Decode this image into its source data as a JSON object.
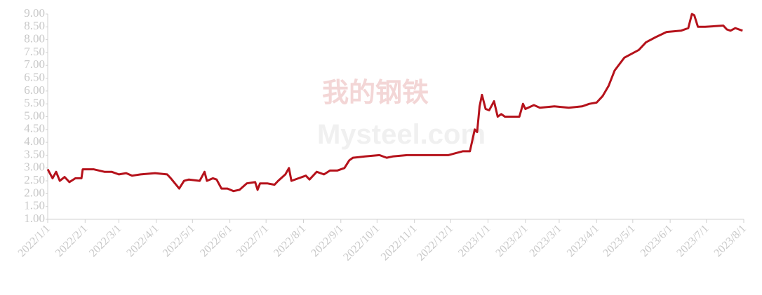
{
  "watermark": {
    "brand": "我的钢铁",
    "site": "Mysteel.com"
  },
  "chart_data": {
    "type": "line",
    "x": [
      "2022/1/1",
      "2022/1/5",
      "2022/1/8",
      "2022/1/11",
      "2022/1/15",
      "2022/1/19",
      "2022/1/24",
      "2022/1/29",
      "2022/1/30",
      "2022/2/8",
      "2022/2/17",
      "2022/2/23",
      "2022/3/1",
      "2022/3/7",
      "2022/3/12",
      "2022/3/19",
      "2022/3/31",
      "2022/4/10",
      "2022/4/13",
      "2022/4/20",
      "2022/4/24",
      "2022/4/28",
      "2022/5/7",
      "2022/5/11",
      "2022/5/13",
      "2022/5/18",
      "2022/5/21",
      "2022/5/25",
      "2022/5/30",
      "2022/6/4",
      "2022/6/9",
      "2022/6/15",
      "2022/6/22",
      "2022/6/24",
      "2022/6/26",
      "2022/7/2",
      "2022/7/8",
      "2022/7/11",
      "2022/7/17",
      "2022/7/20",
      "2022/7/22",
      "2022/7/28",
      "2022/8/3",
      "2022/8/6",
      "2022/8/12",
      "2022/8/18",
      "2022/8/23",
      "2022/8/29",
      "2022/9/4",
      "2022/9/8",
      "2022/9/11",
      "2022/9/21",
      "2022/10/3",
      "2022/10/9",
      "2022/10/14",
      "2022/10/26",
      "2022/11/7",
      "2022/11/18",
      "2022/11/29",
      "2022/12/11",
      "2022/12/17",
      "2022/12/21",
      "2022/12/23",
      "2022/12/25",
      "2022/12/27",
      "2022/12/30",
      "2023/1/2",
      "2023/1/6",
      "2023/1/9",
      "2023/1/12",
      "2023/1/15",
      "2023/1/27",
      "2023/1/30",
      "2023/2/1",
      "2023/2/8",
      "2023/2/13",
      "2023/2/25",
      "2023/3/9",
      "2023/3/20",
      "2023/3/26",
      "2023/4/1",
      "2023/4/6",
      "2023/4/11",
      "2023/4/16",
      "2023/4/24",
      "2023/5/6",
      "2023/5/12",
      "2023/5/20",
      "2023/5/29",
      "2023/6/10",
      "2023/6/16",
      "2023/6/19",
      "2023/6/21",
      "2023/6/24",
      "2023/6/30",
      "2023/7/15",
      "2023/7/18",
      "2023/7/21",
      "2023/7/25",
      "2023/7/31"
    ],
    "series": [
      {
        "color": "#b5121b",
        "values": [
          2.95,
          2.6,
          2.85,
          2.5,
          2.65,
          2.45,
          2.6,
          2.6,
          2.95,
          2.95,
          2.85,
          2.85,
          2.75,
          2.8,
          2.7,
          2.75,
          2.8,
          2.75,
          2.6,
          2.2,
          2.5,
          2.55,
          2.5,
          2.85,
          2.5,
          2.6,
          2.55,
          2.2,
          2.2,
          2.1,
          2.15,
          2.4,
          2.45,
          2.15,
          2.4,
          2.4,
          2.35,
          2.5,
          2.75,
          3.0,
          2.5,
          2.6,
          2.7,
          2.55,
          2.85,
          2.75,
          2.9,
          2.9,
          3.0,
          3.3,
          3.4,
          3.45,
          3.5,
          3.4,
          3.45,
          3.5,
          3.5,
          3.5,
          3.5,
          3.65,
          3.65,
          4.5,
          4.4,
          5.4,
          5.85,
          5.3,
          5.25,
          5.6,
          5.0,
          5.1,
          5.0,
          5.0,
          5.5,
          5.3,
          5.45,
          5.35,
          5.4,
          5.35,
          5.4,
          5.5,
          5.55,
          5.8,
          6.2,
          6.8,
          7.3,
          7.6,
          7.9,
          8.1,
          8.3,
          8.35,
          8.45,
          9.0,
          8.95,
          8.5,
          8.5,
          8.55,
          8.4,
          8.35,
          8.45,
          8.35
        ]
      }
    ],
    "xlim": [
      "2022/1/1",
      "2023/8/1"
    ],
    "xticks": [
      "2022/1/1",
      "2022/2/1",
      "2022/3/1",
      "2022/4/1",
      "2022/5/1",
      "2022/6/1",
      "2022/7/1",
      "2022/8/1",
      "2022/9/1",
      "2022/10/1",
      "2022/11/1",
      "2022/12/1",
      "2023/1/1",
      "2023/2/1",
      "2023/3/1",
      "2023/4/1",
      "2023/5/1",
      "2023/6/1",
      "2023/7/1",
      "2023/8/1"
    ],
    "ylim": [
      1,
      9
    ],
    "yticks": [
      {
        "value": 1,
        "label": "1.00"
      },
      {
        "value": 1.5,
        "label": "1.50"
      },
      {
        "value": 2,
        "label": "2.00"
      },
      {
        "value": 2.5,
        "label": "2.50"
      },
      {
        "value": 3,
        "label": "3.00"
      },
      {
        "value": 3.5,
        "label": "3.50"
      },
      {
        "value": 4,
        "label": "4.00"
      },
      {
        "value": 4.5,
        "label": "4.50"
      },
      {
        "value": 5,
        "label": "5.00"
      },
      {
        "value": 5.5,
        "label": "5.50"
      },
      {
        "value": 6,
        "label": "6.00"
      },
      {
        "value": 6.5,
        "label": "6.50"
      },
      {
        "value": 7,
        "label": "7.00"
      },
      {
        "value": 7.5,
        "label": "7.50"
      },
      {
        "value": 8,
        "label": "8.00"
      },
      {
        "value": 8.5,
        "label": "8.50"
      },
      {
        "value": 9,
        "label": "9.00"
      }
    ]
  }
}
